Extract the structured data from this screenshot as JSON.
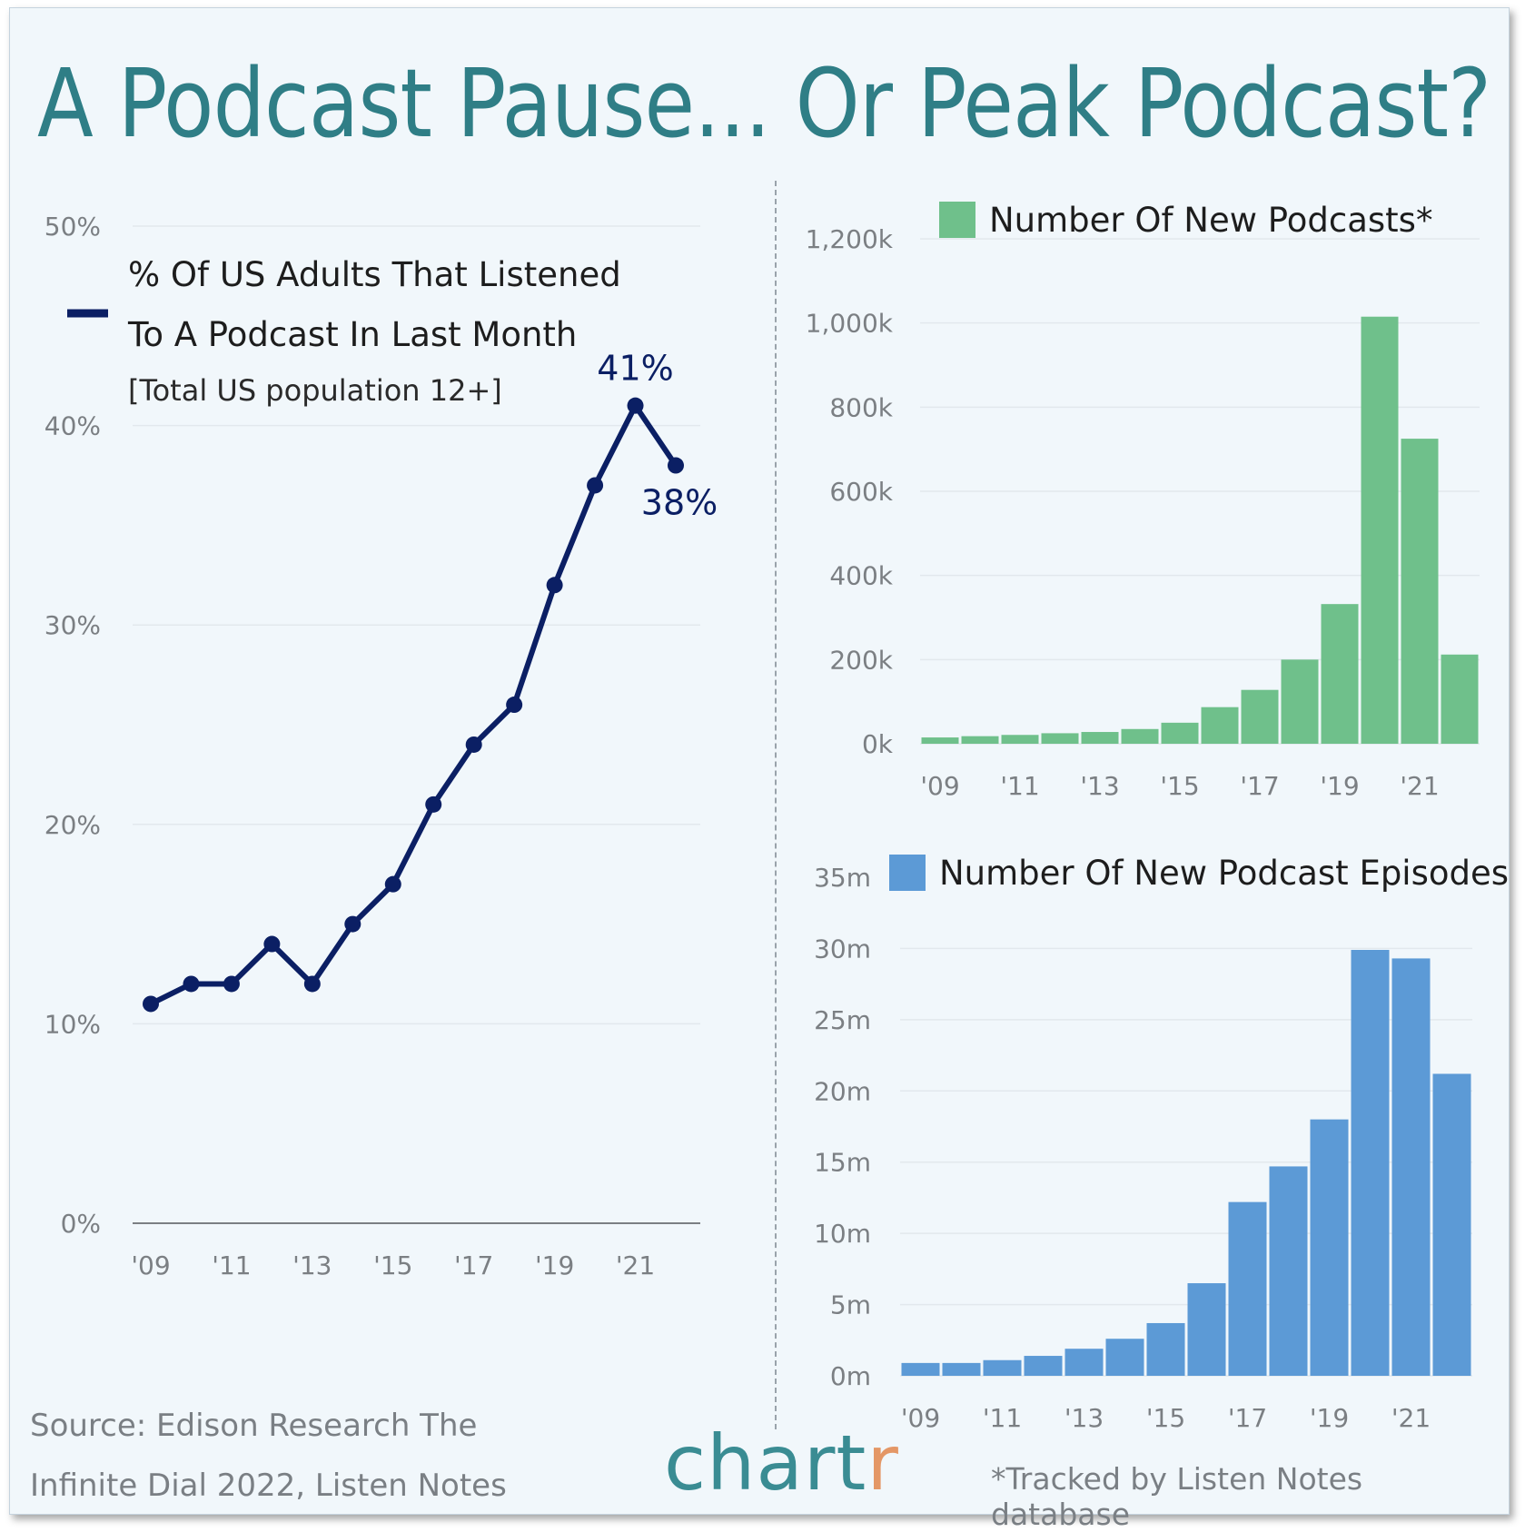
{
  "title": "A Podcast Pause... Or Peak Podcast?",
  "colors": {
    "navy": "#0b1f64",
    "green": "#6fc08b",
    "blue": "#5c9ad6",
    "teal": "#2f7e86",
    "orange": "#e49766",
    "grid": "#e2e8ed",
    "axis": "#7b7f83"
  },
  "source": {
    "line1": "Source: Edison Research The",
    "line2": "Infinite Dial 2022, Listen Notes"
  },
  "logo": {
    "main": "chart",
    "accent": "r"
  },
  "footnote": "*Tracked by Listen Notes database",
  "chart_data": [
    {
      "type": "line",
      "legend": "% Of US Adults That Listened To A Podcast In Last Month",
      "legend_line1": "% Of US Adults That Listened",
      "legend_line2": "To A Podcast In Last Month",
      "subtitle": "[Total US population 12+]",
      "x": [
        2009,
        2010,
        2011,
        2012,
        2013,
        2014,
        2015,
        2016,
        2017,
        2018,
        2019,
        2020,
        2021,
        2022
      ],
      "values": [
        11,
        12,
        12,
        14,
        12,
        15,
        17,
        21,
        24,
        26,
        32,
        37,
        41,
        38
      ],
      "y_ticks": [
        "0%",
        "10%",
        "20%",
        "30%",
        "40%",
        "50%"
      ],
      "x_ticks": [
        "'09",
        "'11",
        "'13",
        "'15",
        "'17",
        "'19",
        "'21"
      ],
      "ylim": [
        0,
        50
      ],
      "annotations": [
        {
          "x": 2021,
          "text": "41%"
        },
        {
          "x": 2022,
          "text": "38%"
        }
      ],
      "grid": true
    },
    {
      "type": "bar",
      "legend": "Number Of New Podcasts*",
      "x": [
        2009,
        2010,
        2011,
        2012,
        2013,
        2014,
        2015,
        2016,
        2017,
        2018,
        2019,
        2020,
        2021,
        2022
      ],
      "values": [
        15000,
        18000,
        21000,
        25000,
        28000,
        35000,
        50000,
        87000,
        128000,
        200000,
        332000,
        1015000,
        725000,
        212000
      ],
      "y_ticks": [
        "0k",
        "200k",
        "400k",
        "600k",
        "800k",
        "1,000k",
        "1,200k"
      ],
      "x_ticks": [
        "'09",
        "'11",
        "'13",
        "'15",
        "'17",
        "'19",
        "'21"
      ],
      "ylim": [
        0,
        1200000
      ],
      "grid": true
    },
    {
      "type": "bar",
      "legend": "Number Of New Podcast Episodes*",
      "x": [
        2009,
        2010,
        2011,
        2012,
        2013,
        2014,
        2015,
        2016,
        2017,
        2018,
        2019,
        2020,
        2021,
        2022
      ],
      "values": [
        0.9,
        0.9,
        1.1,
        1.4,
        1.9,
        2.6,
        3.7,
        6.5,
        12.2,
        14.7,
        18.0,
        29.9,
        29.3,
        21.2
      ],
      "y_ticks": [
        "0m",
        "5m",
        "10m",
        "15m",
        "20m",
        "25m",
        "30m",
        "35m"
      ],
      "x_ticks": [
        "'09",
        "'11",
        "'13",
        "'15",
        "'17",
        "'19",
        "'21"
      ],
      "ylim": [
        0,
        35
      ],
      "grid": true
    }
  ]
}
